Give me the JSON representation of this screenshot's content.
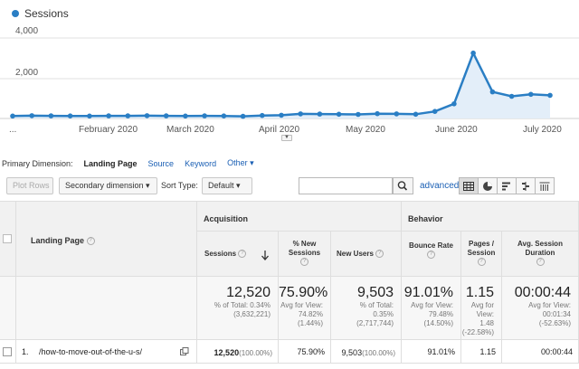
{
  "chart": {
    "legend_label": "Sessions",
    "series_color": "#2a7ec4",
    "y_ticks": [
      "4,000",
      "2,000"
    ],
    "x_ticks": [
      "...",
      "February 2020",
      "March 2020",
      "April 2020",
      "May 2020",
      "June 2020",
      "July 2020"
    ]
  },
  "chart_data": {
    "type": "line",
    "title": "",
    "xlabel": "",
    "ylabel": "",
    "ylim": [
      0,
      4000
    ],
    "grid": true,
    "series": [
      {
        "name": "Sessions",
        "values": [
          120,
          140,
          130,
          125,
          120,
          130,
          130,
          140,
          130,
          120,
          130,
          125,
          110,
          150,
          160,
          230,
          220,
          210,
          200,
          240,
          230,
          210,
          350,
          730,
          3250,
          1320,
          1100,
          1200,
          1150
        ]
      }
    ]
  },
  "primary_dimension": {
    "label": "Primary Dimension:",
    "active": "Landing Page",
    "options": [
      "Source",
      "Keyword"
    ],
    "other": "Other ▾"
  },
  "controls": {
    "plot_rows": "Plot Rows",
    "secondary_dimension": "Secondary dimension ▾",
    "sort_type_label": "Sort Type:",
    "sort_type_value": "Default ▾",
    "search_value": "",
    "advanced": "advanced"
  },
  "table": {
    "dim_header": "Landing Page",
    "acquisition": "Acquisition",
    "behavior": "Behavior",
    "columns": {
      "sessions": "Sessions",
      "pct_new_sessions": "% New Sessions",
      "new_users": "New Users",
      "bounce_rate": "Bounce Rate",
      "pages_session": "Pages / Session",
      "avg_duration": "Avg. Session Duration"
    },
    "summary": {
      "sessions": "12,520",
      "sessions_sub1": "% of Total: 0.34%",
      "sessions_sub2": "(3,632,221)",
      "pct_new": "75.90%",
      "pct_new_sub1": "Avg for View:",
      "pct_new_sub2": "74.82%",
      "pct_new_sub3": "(1.44%)",
      "new_users": "9,503",
      "new_users_sub1": "% of Total:",
      "new_users_sub2": "0.35%",
      "new_users_sub3": "(2,717,744)",
      "bounce": "91.01%",
      "bounce_sub1": "Avg for View:",
      "bounce_sub2": "79.48%",
      "bounce_sub3": "(14.50%)",
      "pages": "1.15",
      "pages_sub1": "Avg for",
      "pages_sub2": "View:",
      "pages_sub3": "1.48",
      "pages_sub4": "(-22.58%)",
      "duration": "00:00:44",
      "duration_sub1": "Avg for View:",
      "duration_sub2": "00:01:34",
      "duration_sub3": "(-52.63%)"
    },
    "rows": [
      {
        "index": "1.",
        "page": "/how-to-move-out-of-the-u-s/",
        "sessions": "12,520",
        "sessions_pct": "(100.00%)",
        "pct_new": "75.90%",
        "new_users": "9,503",
        "new_users_pct": "(100.00%)",
        "bounce": "91.01%",
        "pages": "1.15",
        "duration": "00:00:44"
      }
    ]
  }
}
